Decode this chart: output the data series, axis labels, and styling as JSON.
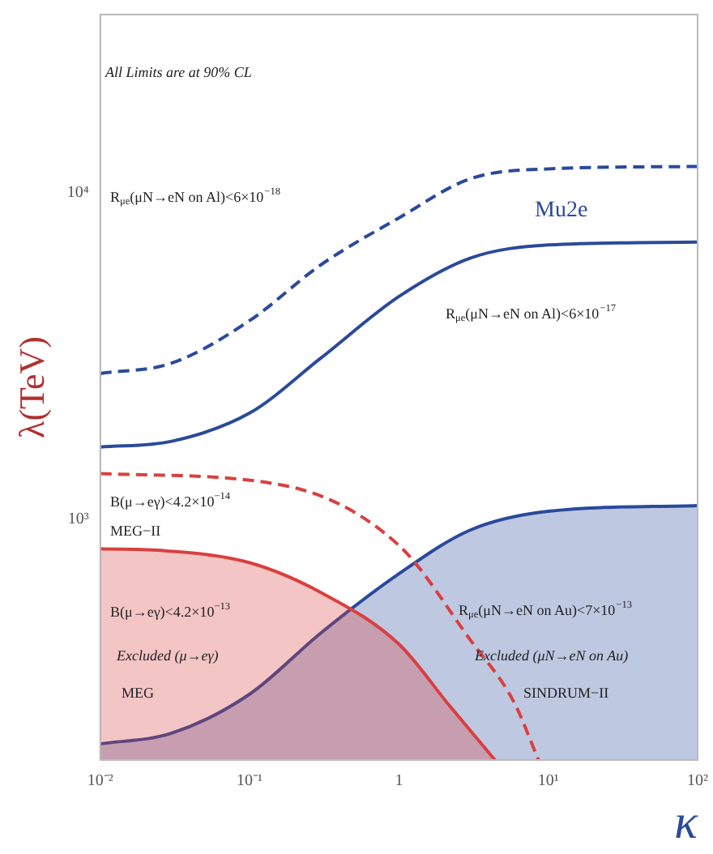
{
  "chart_data": {
    "type": "line",
    "ylabel": "λ(TeV)",
    "xlabel": "κ",
    "log": "xy",
    "grid": false,
    "legend": false,
    "marker": "none",
    "xlim": [
      0.01,
      100
    ],
    "ylim": [
      183,
      35000
    ],
    "xticks": [
      {
        "value": 0.01,
        "label": "10⁻²"
      },
      {
        "value": 0.1,
        "label": "10⁻¹"
      },
      1,
      {
        "value": 10,
        "label": "10¹"
      },
      {
        "value": 100,
        "label": "10²"
      }
    ],
    "yticks": [
      {
        "value": 1000,
        "label": "10³"
      },
      {
        "value": 10000,
        "label": "10⁴"
      }
    ],
    "x": [
      0.01,
      0.03,
      0.1,
      0.3,
      1,
      3,
      10,
      100
    ],
    "series": [
      {
        "type": "area",
        "color": "#d94040",
        "x": [
          0.01,
          0.027,
          0.1,
          0.3,
          1,
          2.2,
          4.4
        ],
        "values": [
          811,
          800,
          735,
          596,
          414,
          267,
          183
        ]
      },
      {
        "type": "area",
        "color": "#2a4a9a",
        "values": [
          205,
          221,
          291,
          448,
          680,
          925,
          1056,
          1100
        ]
      },
      {
        "line_style": "dashed",
        "color": "#d94040",
        "x": [
          0.01,
          0.16,
          1,
          3,
          5.9,
          8.6
        ],
        "values": [
          1378,
          1274,
          830,
          427,
          275,
          183
        ]
      },
      {
        "line_style": "dashed",
        "color": "#2a4a9a",
        "values": [
          2790,
          3000,
          4050,
          6000,
          8350,
          11000,
          11800,
          12000
        ]
      },
      {
        "line_style": "solid",
        "color": "#2a4a9a",
        "values": [
          1660,
          1730,
          2110,
          3110,
          4800,
          6290,
          6900,
          7040
        ]
      }
    ],
    "annotations": [
      "All Limits are at 90% CL",
      "R$_{μe}$(μN→eN on Al)<6×10$^{−18}$",
      "Mu2e",
      "R$_{μe}$(μN→eN on Al)<6×10$^{−17}$",
      "B(μ→eγ)<4.2×10$^{−14}$",
      "MEG−II",
      "B(μ→eγ)<4.2×10$^{−13}$",
      "Excluded (μ→eγ)",
      "MEG",
      "R$_{μe}$(μN→eN on Au)<7×10$^{−13}$",
      "Excluded (μN→eN on Au)",
      "SINDRUM−II"
    ]
  }
}
